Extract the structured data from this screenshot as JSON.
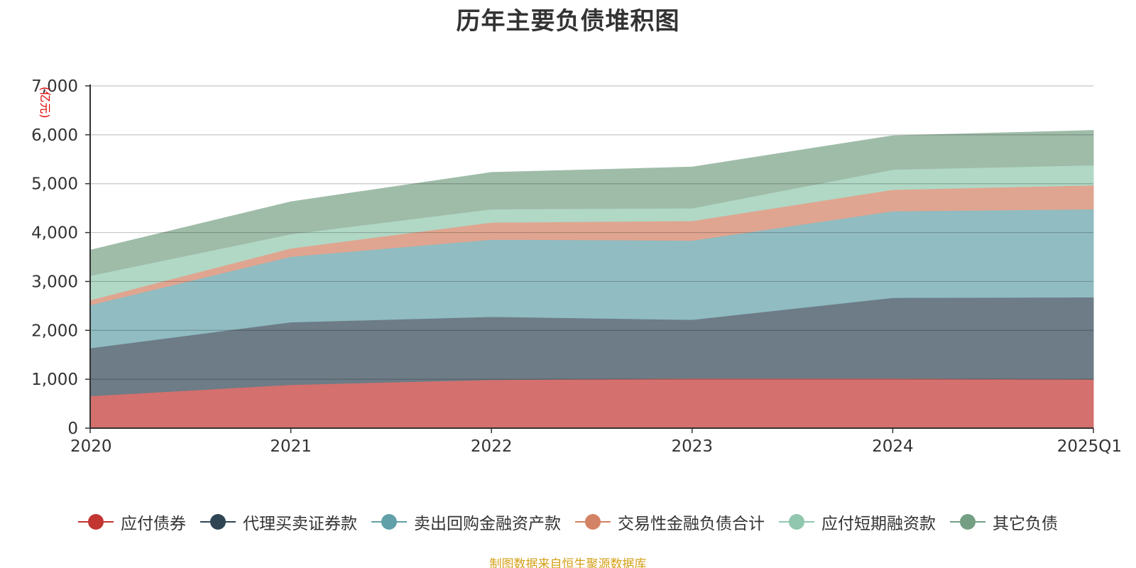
{
  "chart_data": {
    "type": "area",
    "stacked": true,
    "title": "历年主要负债堆积图",
    "unit_label": "(亿元)",
    "categories": [
      "2020",
      "2021",
      "2022",
      "2023",
      "2024",
      "2025Q1"
    ],
    "ylim": [
      0,
      7000
    ],
    "yticks": [
      0,
      1000,
      2000,
      3000,
      4000,
      5000,
      6000,
      7000
    ],
    "ytick_labels": [
      "0",
      "1,000",
      "2,000",
      "3,000",
      "4,000",
      "5,000",
      "6,000",
      "7,000"
    ],
    "grid": true,
    "legend_position": "bottom",
    "series": [
      {
        "name": "应付债券",
        "color": "#c23531",
        "fill": "#d4706d",
        "values": [
          660,
          890,
          990,
          1020,
          1020,
          1000
        ]
      },
      {
        "name": "代理买卖证券款",
        "color": "#2f4554",
        "fill": "#6d7c87",
        "values": [
          980,
          1280,
          1290,
          1200,
          1650,
          1680
        ]
      },
      {
        "name": "卖出回购金融资产款",
        "color": "#61a0a8",
        "fill": "#90bcc2",
        "values": [
          880,
          1340,
          1580,
          1620,
          1770,
          1800
        ]
      },
      {
        "name": "交易性金融负债合计",
        "color": "#d48265",
        "fill": "#e0a590",
        "values": [
          100,
          170,
          350,
          400,
          440,
          490
        ]
      },
      {
        "name": "应付短期融资款",
        "color": "#91c7ae",
        "fill": "#b0d8c5",
        "values": [
          500,
          290,
          270,
          260,
          410,
          410
        ]
      },
      {
        "name": "其它负债",
        "color": "#749f83",
        "fill": "#9fbca9",
        "values": [
          520,
          660,
          750,
          840,
          690,
          710
        ]
      }
    ],
    "source_note": "制图数据来自恒生聚源数据库"
  }
}
